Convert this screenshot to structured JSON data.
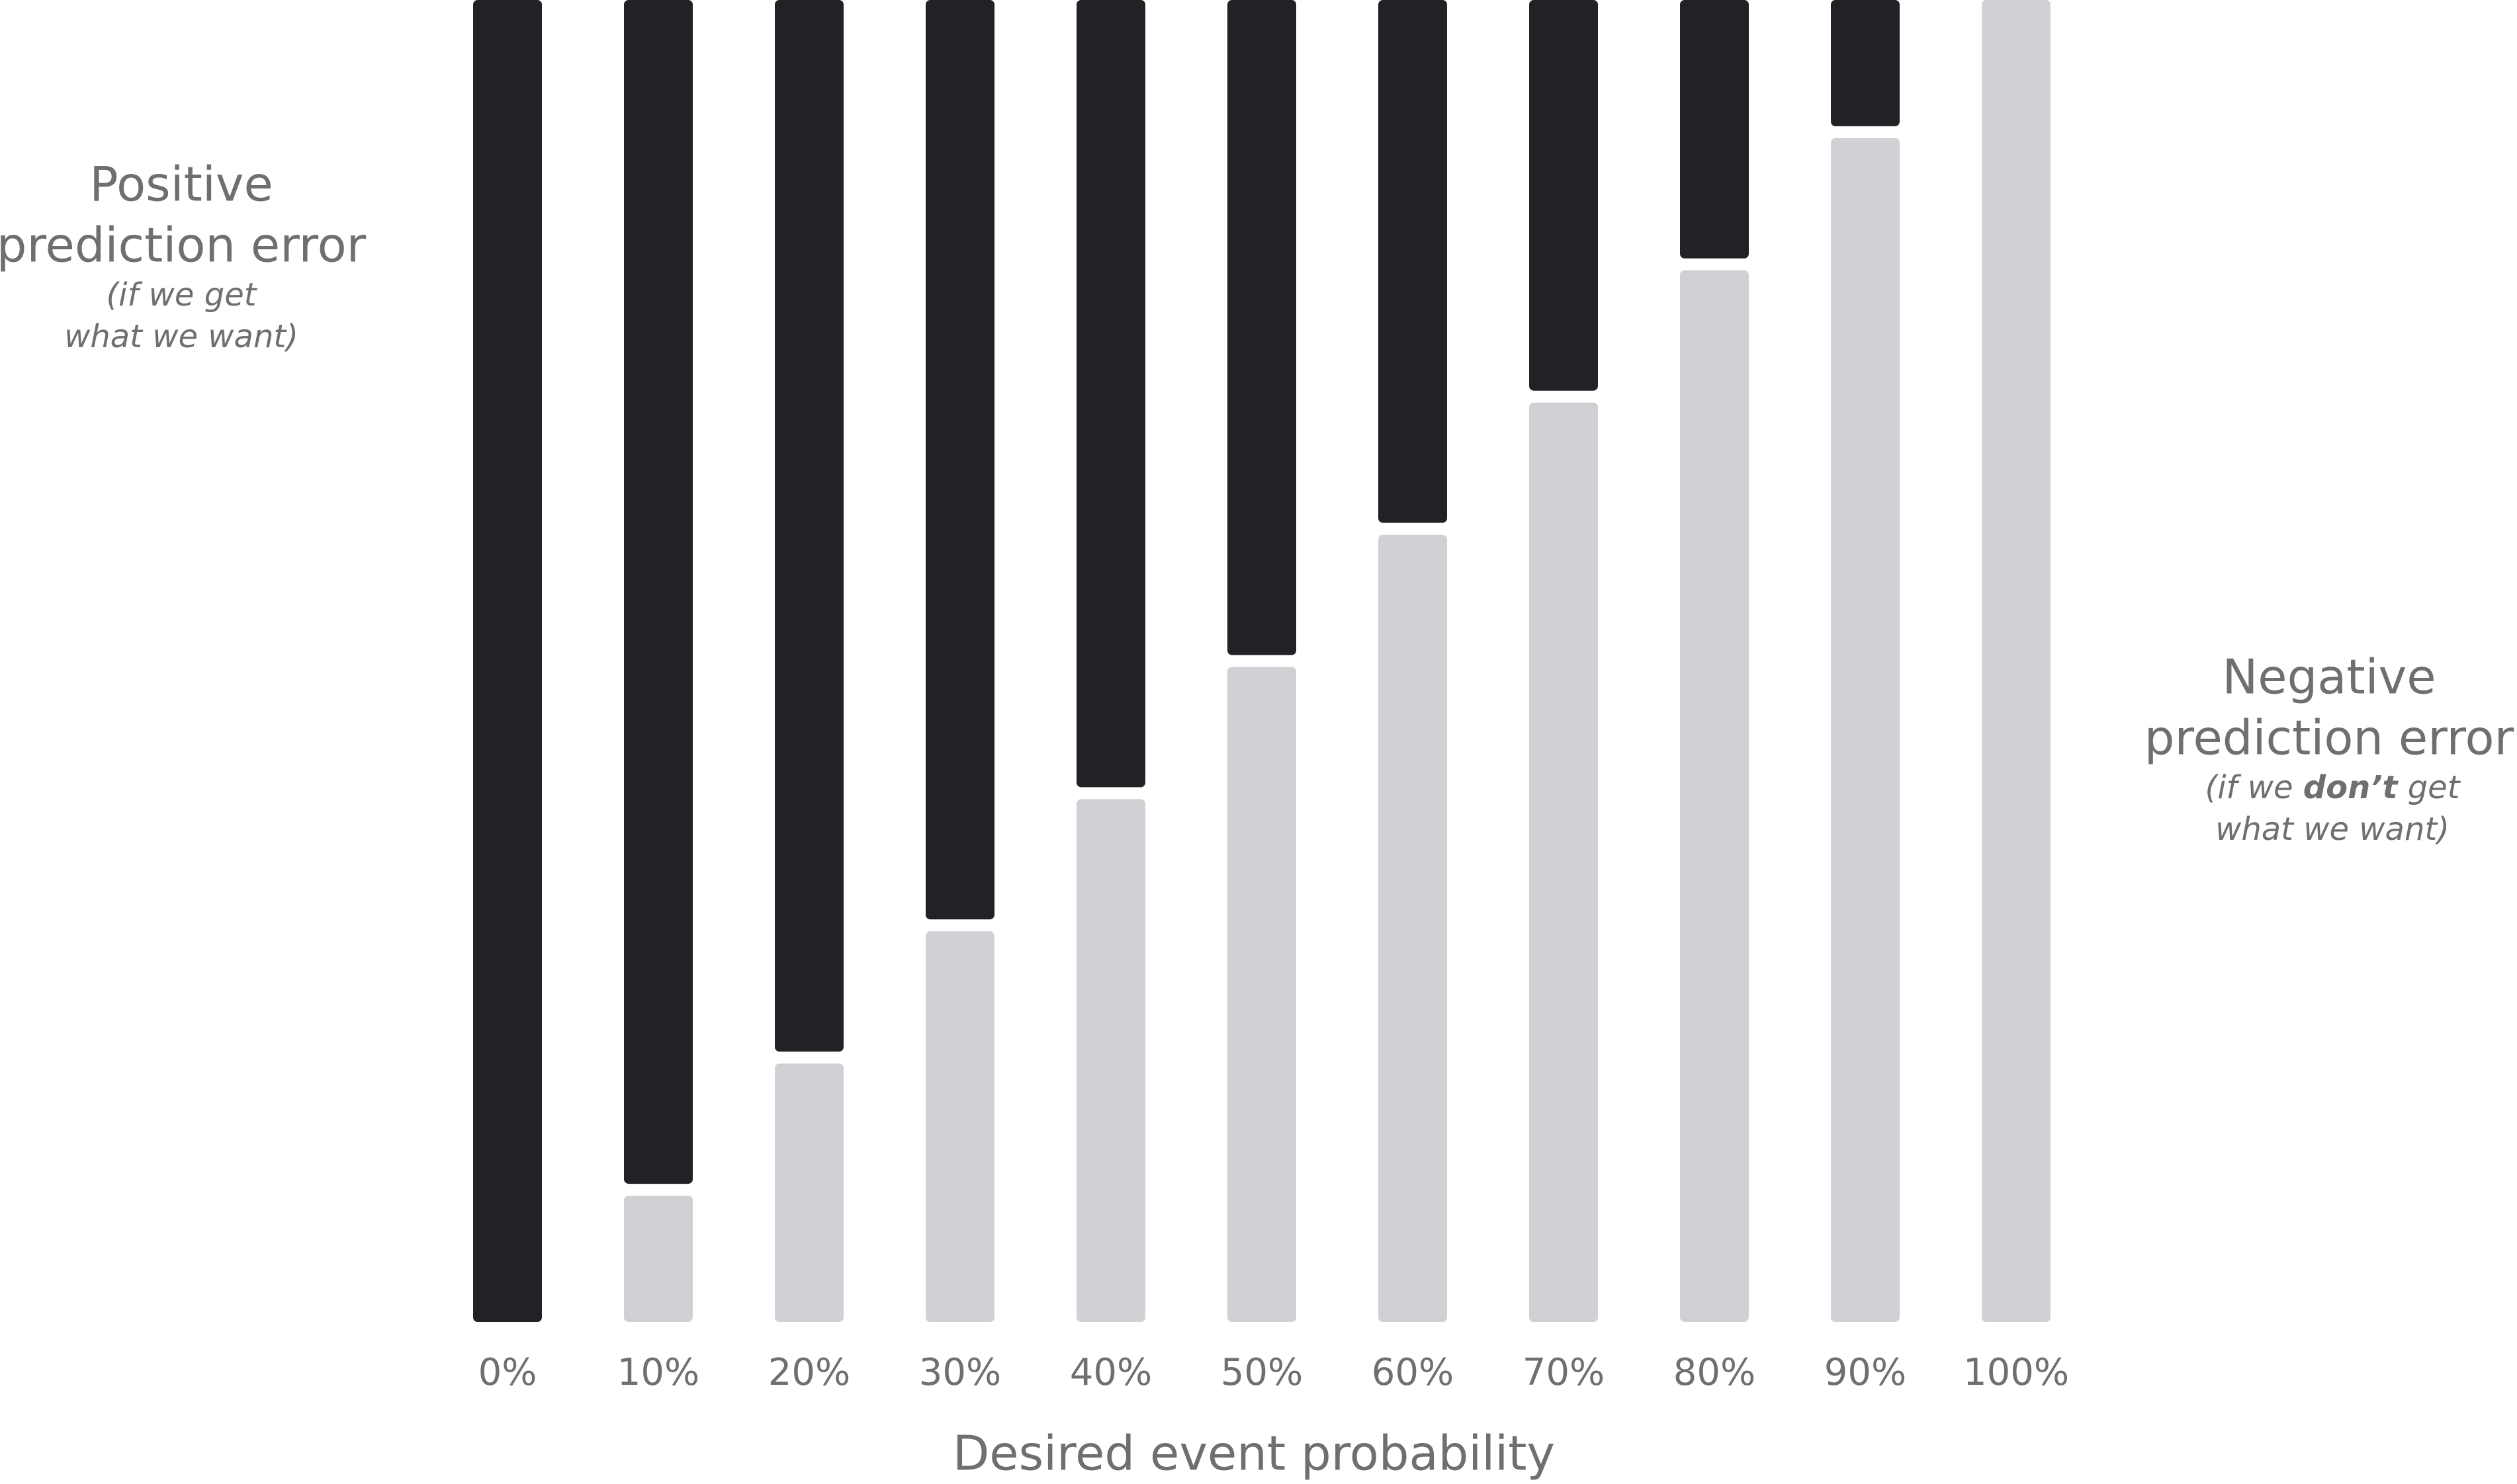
{
  "chart_data": {
    "type": "stacked_bar",
    "x_label": "Desired event probability",
    "categories": [
      "0%",
      "10%",
      "20%",
      "30%",
      "40%",
      "50%",
      "60%",
      "70%",
      "80%",
      "90%",
      "100%"
    ],
    "ylim": [
      0,
      100
    ],
    "series": [
      {
        "name_lines": [
          "Negative",
          "prediction error"
        ],
        "note_lines": [
          [
            "(if we ",
            "don’t",
            " get"
          ],
          [
            "what we want)"
          ]
        ],
        "color": "#d0d1d4",
        "values": [
          0,
          10,
          20,
          30,
          40,
          50,
          60,
          70,
          80,
          90,
          100
        ]
      },
      {
        "name_lines": [
          "Positive",
          "prediction error"
        ],
        "note_lines": [
          [
            "(if we get"
          ],
          [
            "what we want)"
          ]
        ],
        "color": "#222226",
        "values": [
          100,
          90,
          80,
          70,
          60,
          50,
          40,
          30,
          20,
          10,
          0
        ]
      }
    ]
  }
}
